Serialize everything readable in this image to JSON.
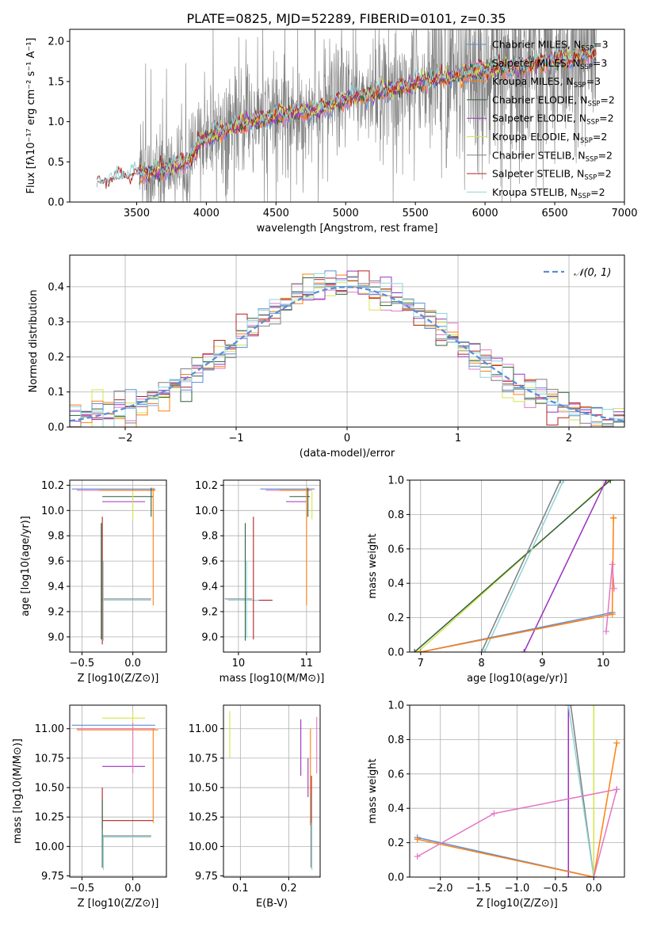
{
  "figure_title": "PLATE=0825, MJD=52289, FIBERID=0101, z=0.35",
  "colors": {
    "chabrier_miles": "#5b8ed6",
    "salpeter_miles": "#e377c2",
    "kroupa_miles": "#ff7f0e",
    "chabrier_elodie": "#2f5f3f",
    "salpeter_elodie": "#9b30c0",
    "kroupa_elodie": "#d4e54a",
    "chabrier_stelib": "#808080",
    "salpeter_stelib": "#b22222",
    "kroupa_stelib": "#8fd3d8",
    "grid": "#b0b0b0"
  },
  "chart_data": [
    {
      "id": "spectrum",
      "type": "line",
      "title": "PLATE=0825, MJD=52289, FIBERID=0101, z=0.35",
      "xlabel": "wavelength [Angstrom, rest frame]",
      "ylabel": "Flux [fλ10⁻¹⁷ erg cm⁻² s⁻¹ A⁻¹]",
      "xlim": [
        3020,
        7000
      ],
      "ylim": [
        0,
        2.15
      ],
      "xticks": [
        3500,
        4000,
        4500,
        5000,
        5500,
        6000,
        6500,
        7000
      ],
      "yticks": [
        0.0,
        0.5,
        1.0,
        1.5,
        2.0
      ],
      "legend_position": "top-right",
      "legend": [
        "Chabrier MILES, N_SSP=3",
        "Salpeter MILES, N_SSP=3",
        "Kroupa MILES, N_SSP=3",
        "Chabrier ELODIE, N_SSP=2",
        "Salpeter ELODIE, N_SSP=2",
        "Kroupa ELODIE, N_SSP=2",
        "Chabrier STELIB, N_SSP=2",
        "Salpeter STELIB, N_SSP=2",
        "Kroupa STELIB, N_SSP=2"
      ],
      "legend_main": [
        "Chabrier MILES, N",
        "Salpeter MILES, N",
        "Kroupa MILES, N",
        "Chabrier ELODIE, N",
        "Salpeter ELODIE, N",
        "Kroupa ELODIE, N",
        "Chabrier STELIB, N",
        "Salpeter STELIB, N",
        "Kroupa STELIB, N"
      ],
      "legend_sub": [
        "SSP",
        "SSP",
        "SSP",
        "SSP",
        "SSP",
        "SSP",
        "SSP",
        "SSP",
        "SSP"
      ],
      "legend_tail": [
        "=3",
        "=3",
        "=3",
        "=2",
        "=2",
        "=2",
        "=2",
        "=2",
        "=2"
      ],
      "model_continuum": {
        "x": [
          3200,
          3220,
          3500,
          3700,
          3900,
          3950,
          4000,
          4200,
          4500,
          4800,
          5000,
          5200,
          5500,
          5800,
          6000,
          6300,
          6500,
          6800
        ],
        "y": [
          0.0,
          0.25,
          0.35,
          0.4,
          0.55,
          0.75,
          0.8,
          0.95,
          1.08,
          1.15,
          1.28,
          1.35,
          1.48,
          1.58,
          1.65,
          1.7,
          1.78,
          1.85
        ]
      }
    },
    {
      "id": "residuals",
      "type": "histogram",
      "xlabel": "(data-model)/error",
      "ylabel": "Normed distribution",
      "xlim": [
        -2.5,
        2.5
      ],
      "ylim": [
        0,
        0.49
      ],
      "xticks": [
        -2,
        -1,
        0,
        1,
        2
      ],
      "yticks": [
        0.0,
        0.1,
        0.2,
        0.3,
        0.4
      ],
      "bin_edges_start": -2.5,
      "bin_width": 0.1,
      "legend": "𝒩(0, 1)",
      "legend_position": "top-right",
      "gaussian": {
        "mean": 0,
        "sigma": 1
      }
    },
    {
      "id": "age-vs-z",
      "type": "scatter",
      "xlabel": "Z [log10(Z/Z⊙)]",
      "ylabel": "age  [log10(age/yr)]",
      "xlim": [
        -0.62,
        0.33
      ],
      "ylim": [
        8.88,
        10.24
      ],
      "xticks": [
        -0.5,
        0.0
      ],
      "yticks": [
        9.0,
        9.2,
        9.4,
        9.6,
        9.8,
        10.0,
        10.2
      ],
      "segments": [
        {
          "s": "chabrier_miles",
          "x": [
            -0.6,
            0.22
          ],
          "y": [
            10.17,
            10.17
          ]
        },
        {
          "s": "salpeter_miles",
          "x": [
            -0.55,
            0.22
          ],
          "y": [
            10.16,
            10.16
          ]
        },
        {
          "s": "kroupa_miles",
          "x": [
            -0.33,
            0.22
          ],
          "y": [
            10.16,
            10.16
          ]
        },
        {
          "s": "chabrier_elodie",
          "x": [
            -0.3,
            0.2
          ],
          "y": [
            10.11,
            10.11
          ]
        },
        {
          "s": "salpeter_elodie",
          "x": [
            -0.3,
            0.12
          ],
          "y": [
            10.07,
            10.07
          ]
        },
        {
          "s": "kroupa_elodie",
          "x": [
            0.0,
            0.0
          ],
          "y": [
            9.93,
            10.15
          ]
        },
        {
          "s": "chabrier_stelib",
          "x": [
            -0.3,
            0.18
          ],
          "y": [
            9.3,
            9.3
          ]
        },
        {
          "s": "kroupa_stelib",
          "x": [
            -0.3,
            0.18
          ],
          "y": [
            9.29,
            9.29
          ]
        },
        {
          "s": "salpeter_stelib",
          "x": [
            -0.3,
            -0.3
          ],
          "y": [
            8.94,
            9.95
          ]
        },
        {
          "s": "chabrier_elodie",
          "x": [
            -0.31,
            -0.31
          ],
          "y": [
            8.98,
            9.9
          ]
        },
        {
          "s": "kroupa_stelib",
          "x": [
            -0.29,
            -0.29
          ],
          "y": [
            8.97,
            9.6
          ]
        },
        {
          "s": "kroupa_miles",
          "x": [
            0.2,
            0.2
          ],
          "y": [
            9.25,
            10.18
          ]
        },
        {
          "s": "chabrier_elodie",
          "x": [
            0.18,
            0.18
          ],
          "y": [
            9.95,
            10.18
          ]
        }
      ]
    },
    {
      "id": "age-vs-mass",
      "type": "scatter",
      "xlabel": "mass [log10(M/M⊙)]",
      "ylabel": "",
      "xlim": [
        9.78,
        11.2
      ],
      "ylim": [
        8.88,
        10.24
      ],
      "xticks": [
        10,
        11
      ],
      "yticks": [
        9.0,
        9.2,
        9.4,
        9.6,
        9.8,
        10.0,
        10.2
      ],
      "segments": [
        {
          "s": "chabrier_miles",
          "x": [
            10.32,
            11.12
          ],
          "y": [
            10.17,
            10.17
          ]
        },
        {
          "s": "salpeter_miles",
          "x": [
            10.4,
            11.08
          ],
          "y": [
            10.16,
            10.16
          ]
        },
        {
          "s": "kroupa_miles",
          "x": [
            10.6,
            11.05
          ],
          "y": [
            10.16,
            10.16
          ]
        },
        {
          "s": "chabrier_elodie",
          "x": [
            10.75,
            11.05
          ],
          "y": [
            10.11,
            10.11
          ]
        },
        {
          "s": "salpeter_elodie",
          "x": [
            10.7,
            11.0
          ],
          "y": [
            10.07,
            10.07
          ]
        },
        {
          "s": "kroupa_elodie",
          "x": [
            11.08,
            11.08
          ],
          "y": [
            9.93,
            10.15
          ]
        },
        {
          "s": "chabrier_stelib",
          "x": [
            9.8,
            10.2
          ],
          "y": [
            9.3,
            9.3
          ]
        },
        {
          "s": "salpeter_stelib",
          "x": [
            10.2,
            10.5
          ],
          "y": [
            9.29,
            9.29
          ]
        },
        {
          "s": "kroupa_stelib",
          "x": [
            9.85,
            10.3
          ],
          "y": [
            9.29,
            9.29
          ]
        },
        {
          "s": "salpeter_stelib",
          "x": [
            10.22,
            10.22
          ],
          "y": [
            8.98,
            9.95
          ]
        },
        {
          "s": "chabrier_elodie",
          "x": [
            10.1,
            10.1
          ],
          "y": [
            8.97,
            9.9
          ]
        },
        {
          "s": "kroupa_stelib",
          "x": [
            10.12,
            10.12
          ],
          "y": [
            8.99,
            9.6
          ]
        },
        {
          "s": "kroupa_miles",
          "x": [
            11.0,
            11.0
          ],
          "y": [
            9.25,
            10.18
          ]
        },
        {
          "s": "chabrier_elodie",
          "x": [
            11.02,
            11.02
          ],
          "y": [
            9.95,
            10.18
          ]
        }
      ]
    },
    {
      "id": "weight-vs-age",
      "type": "line",
      "xlabel": "age  [log10(age/yr)]",
      "ylabel": "mass weight",
      "xlim": [
        6.82,
        10.35
      ],
      "ylim": [
        0,
        1.0
      ],
      "xticks": [
        7,
        8,
        9,
        10
      ],
      "yticks": [
        0.0,
        0.2,
        0.4,
        0.6,
        0.8,
        1.0
      ],
      "series": [
        {
          "s": "kroupa_elodie",
          "x": [
            6.95,
            10.1
          ],
          "y": [
            0.0,
            1.0
          ]
        },
        {
          "s": "chabrier_elodie",
          "x": [
            6.9,
            10.12
          ],
          "y": [
            0.0,
            1.0
          ]
        },
        {
          "s": "salpeter_elodie",
          "x": [
            8.7,
            10.05
          ],
          "y": [
            0.0,
            1.0
          ]
        },
        {
          "s": "chabrier_stelib",
          "x": [
            8.0,
            9.3
          ],
          "y": [
            0.0,
            1.0
          ]
        },
        {
          "s": "kroupa_stelib",
          "x": [
            8.05,
            9.35
          ],
          "y": [
            0.0,
            1.0
          ]
        },
        {
          "s": "chabrier_miles",
          "x": [
            7.0,
            10.15
          ],
          "y": [
            0.0,
            0.23
          ]
        },
        {
          "s": "kroupa_miles",
          "x": [
            7.0,
            10.15,
            10.17,
            10.17
          ],
          "y": [
            0.0,
            0.22,
            0.78,
            0.78
          ]
        },
        {
          "s": "salpeter_miles",
          "x": [
            10.05,
            10.15,
            10.18
          ],
          "y": [
            0.12,
            0.51,
            0.37
          ]
        }
      ]
    },
    {
      "id": "mass-vs-z",
      "type": "scatter",
      "xlabel": "Z [log10(Z/Z⊙)]",
      "ylabel": "mass [log10(M/M⊙)]",
      "xlim": [
        -0.62,
        0.33
      ],
      "ylim": [
        9.74,
        11.2
      ],
      "xticks": [
        -0.5,
        0.0
      ],
      "yticks": [
        9.75,
        10.0,
        10.25,
        10.5,
        10.75,
        11.0
      ],
      "segments": [
        {
          "s": "chabrier_miles",
          "x": [
            -0.6,
            0.22
          ],
          "y": [
            11.03,
            11.03
          ]
        },
        {
          "s": "salpeter_miles",
          "x": [
            -0.55,
            0.22
          ],
          "y": [
            11.0,
            11.0
          ]
        },
        {
          "s": "kroupa_miles",
          "x": [
            -0.55,
            0.25
          ],
          "y": [
            10.99,
            10.99
          ]
        },
        {
          "s": "kroupa_elodie",
          "x": [
            -0.3,
            0.12
          ],
          "y": [
            11.09,
            11.09
          ]
        },
        {
          "s": "salpeter_elodie",
          "x": [
            -0.3,
            0.12
          ],
          "y": [
            10.68,
            10.68
          ]
        },
        {
          "s": "kroupa_elodie",
          "x": [
            0.0,
            0.0
          ],
          "y": [
            10.75,
            11.15
          ]
        },
        {
          "s": "salpeter_miles",
          "x": [
            0.0,
            0.0
          ],
          "y": [
            10.62,
            11.05
          ]
        },
        {
          "s": "salpeter_stelib",
          "x": [
            -0.3,
            0.2
          ],
          "y": [
            10.22,
            10.22
          ]
        },
        {
          "s": "chabrier_stelib",
          "x": [
            -0.3,
            0.18
          ],
          "y": [
            10.09,
            10.09
          ]
        },
        {
          "s": "kroupa_stelib",
          "x": [
            -0.3,
            0.18
          ],
          "y": [
            10.08,
            10.08
          ]
        },
        {
          "s": "salpeter_stelib",
          "x": [
            -0.3,
            -0.3
          ],
          "y": [
            10.15,
            10.5
          ]
        },
        {
          "s": "chabrier_elodie",
          "x": [
            -0.3,
            -0.3
          ],
          "y": [
            9.82,
            10.4
          ]
        },
        {
          "s": "kroupa_stelib",
          "x": [
            -0.29,
            -0.29
          ],
          "y": [
            9.8,
            10.1
          ]
        },
        {
          "s": "kroupa_miles",
          "x": [
            0.2,
            0.2
          ],
          "y": [
            10.2,
            11.0
          ]
        }
      ]
    },
    {
      "id": "mass-vs-ebv",
      "type": "scatter",
      "xlabel": "E(B-V)",
      "ylabel": "",
      "xlim": [
        0.065,
        0.265
      ],
      "ylim": [
        9.74,
        11.2
      ],
      "xticks": [
        0.1,
        0.2
      ],
      "yticks": [
        9.75,
        10.0,
        10.25,
        10.5,
        10.75,
        11.0
      ],
      "segments": [
        {
          "s": "kroupa_elodie",
          "x": [
            0.078,
            0.078
          ],
          "y": [
            10.75,
            11.15
          ]
        },
        {
          "s": "salpeter_elodie",
          "x": [
            0.225,
            0.225
          ],
          "y": [
            10.6,
            11.08
          ]
        },
        {
          "s": "salpeter_elodie",
          "x": [
            0.24,
            0.24
          ],
          "y": [
            10.42,
            10.75
          ]
        },
        {
          "s": "salpeter_miles",
          "x": [
            0.258,
            0.258
          ],
          "y": [
            10.62,
            11.1
          ]
        },
        {
          "s": "kroupa_miles",
          "x": [
            0.245,
            0.245
          ],
          "y": [
            10.18,
            11.0
          ]
        },
        {
          "s": "salpeter_stelib",
          "x": [
            0.247,
            0.247
          ],
          "y": [
            10.2,
            10.6
          ]
        },
        {
          "s": "chabrier_stelib",
          "x": [
            0.246,
            0.246
          ],
          "y": [
            9.82,
            10.45
          ]
        },
        {
          "s": "kroupa_stelib",
          "x": [
            0.248,
            0.248
          ],
          "y": [
            9.8,
            10.2
          ]
        }
      ]
    },
    {
      "id": "weight-vs-z",
      "type": "line",
      "xlabel": "Z [log10(Z/Z⊙)]",
      "ylabel": "mass weight",
      "xlim": [
        -2.4,
        0.4
      ],
      "ylim": [
        0,
        1.0
      ],
      "xticks": [
        -2.0,
        -1.5,
        -1.0,
        -0.5,
        0.0
      ],
      "yticks": [
        0.0,
        0.2,
        0.4,
        0.6,
        0.8,
        1.0
      ],
      "series": [
        {
          "s": "salpeter_elodie",
          "x": [
            -0.33,
            -0.33
          ],
          "y": [
            0.0,
            1.0
          ]
        },
        {
          "s": "chabrier_stelib",
          "x": [
            -0.3,
            0.0
          ],
          "y": [
            1.0,
            0.0
          ]
        },
        {
          "s": "kroupa_stelib",
          "x": [
            -0.33,
            0.0
          ],
          "y": [
            1.0,
            0.0
          ]
        },
        {
          "s": "kroupa_elodie",
          "x": [
            0.0,
            0.0
          ],
          "y": [
            0.0,
            1.0
          ]
        },
        {
          "s": "chabrier_miles",
          "x": [
            -2.3,
            0.0
          ],
          "y": [
            0.23,
            0.0
          ]
        },
        {
          "s": "kroupa_miles",
          "x": [
            -2.3,
            0.0,
            0.3
          ],
          "y": [
            0.22,
            0.0,
            0.78
          ]
        },
        {
          "s": "salpeter_miles",
          "x": [
            -2.3,
            -1.3,
            0.3
          ],
          "y": [
            0.12,
            0.37,
            0.51
          ]
        },
        {
          "s": "salpeter_miles",
          "x": [
            0.0,
            0.3
          ],
          "y": [
            0.0,
            0.51
          ]
        }
      ]
    }
  ]
}
